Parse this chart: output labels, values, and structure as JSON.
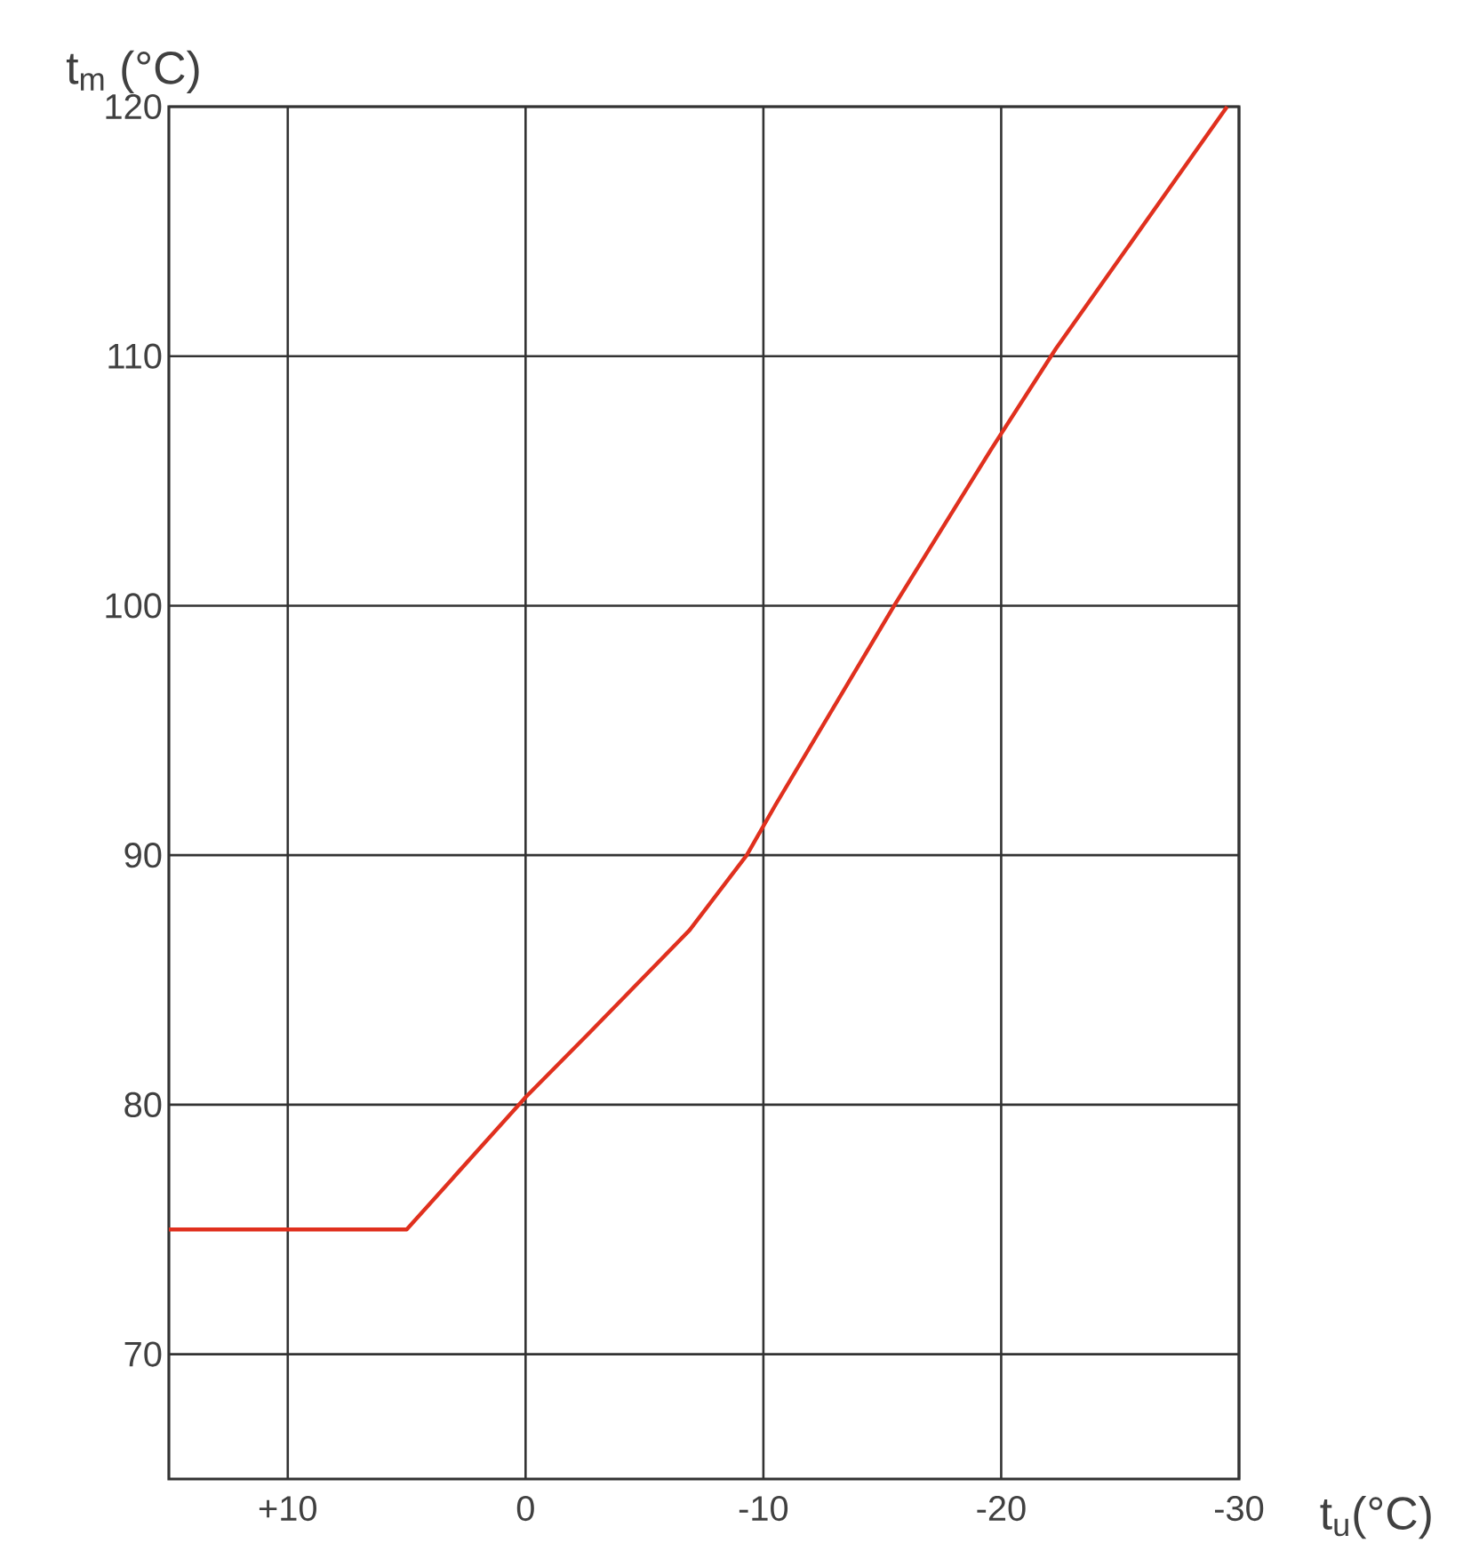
{
  "chart_data": {
    "type": "line",
    "xlabel": "t$_{u}$(°C)",
    "ylabel": "t$_{m}$ (°C)",
    "x": [
      15,
      5,
      0,
      -2.7,
      -6.9,
      -9.3,
      -10.5,
      -15.5,
      -19.6,
      -22.3,
      -29.5
    ],
    "series": [
      {
        "color": "#e0301e",
        "values": [
          75,
          75,
          80.3,
          82.9,
          87,
          90,
          92,
          100,
          106.3,
          110.3,
          120
        ]
      }
    ],
    "xlim": [
      15,
      -30
    ],
    "ylim": [
      65,
      120
    ],
    "xticks": [
      {
        "value": 10,
        "label": "+10"
      },
      0,
      -10,
      -20,
      -30
    ],
    "yticks": [
      70,
      80,
      90,
      100,
      110,
      120
    ],
    "grid": true,
    "marker": "none",
    "line_style": "solid"
  }
}
